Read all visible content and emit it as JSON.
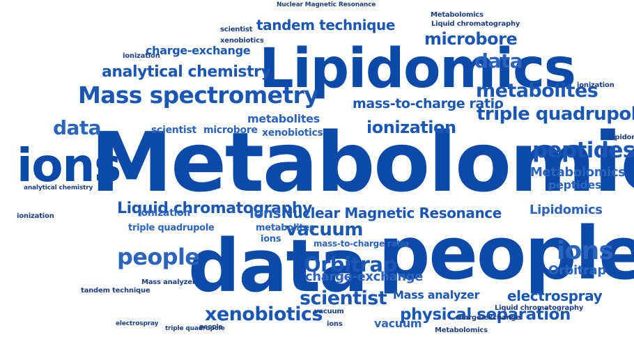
{
  "cloud": {
    "words": [
      "Metabolomics",
      "people",
      "data",
      "Lipidomics",
      "ions",
      "Mass spectrometry",
      "analytical chemistry",
      "Liquid chromatography",
      "Nuclear Magnetic Resonance",
      "vacuum",
      "triple quadrupole",
      "metabolites",
      "peptides",
      "ionization",
      "mass-to-charge ratio",
      "microbore",
      "physical separation",
      "Orbitrap",
      "scientist",
      "xenobiotics",
      "electrospray",
      "tandem technique",
      "Mass analyzer",
      "charge-exchange"
    ]
  }
}
